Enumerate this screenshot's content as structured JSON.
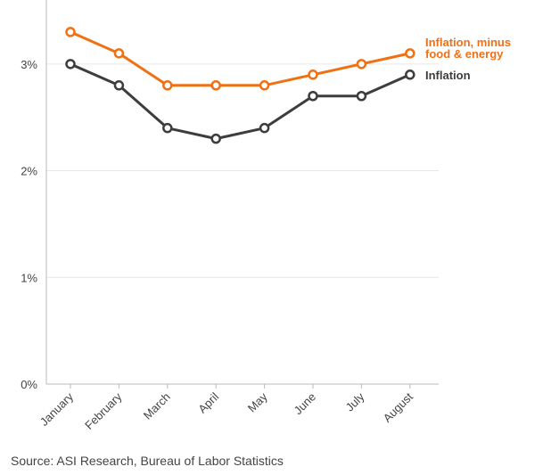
{
  "chart_data": {
    "type": "line",
    "categories": [
      "January",
      "February",
      "March",
      "April",
      "May",
      "June",
      "July",
      "August"
    ],
    "series": [
      {
        "name": "Inflation, minus food & energy",
        "name_lines": [
          "Inflation, minus",
          "food & energy"
        ],
        "color": "#f07014",
        "values": [
          3.3,
          3.1,
          2.8,
          2.8,
          2.8,
          2.9,
          3.0,
          3.1
        ]
      },
      {
        "name": "Inflation",
        "name_lines": [
          "Inflation"
        ],
        "color": "#3d3d3d",
        "values": [
          3.0,
          2.8,
          2.4,
          2.3,
          2.4,
          2.7,
          2.7,
          2.9
        ]
      }
    ],
    "yticks": [
      0,
      1,
      2,
      3
    ],
    "ytick_labels": [
      "0%",
      "1%",
      "2%",
      "3%"
    ],
    "ylim": [
      0,
      3.6
    ],
    "grid": true,
    "legend": "right, at line ends"
  },
  "source": "Source: ASI Research, Bureau of Labor Statistics"
}
